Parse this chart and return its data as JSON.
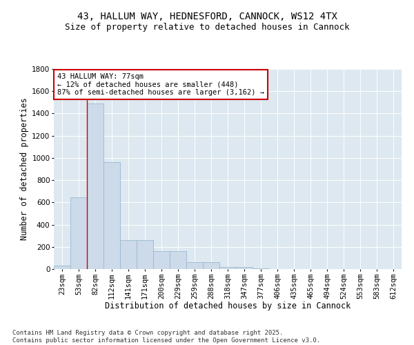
{
  "title_line1": "43, HALLUM WAY, HEDNESFORD, CANNOCK, WS12 4TX",
  "title_line2": "Size of property relative to detached houses in Cannock",
  "xlabel": "Distribution of detached houses by size in Cannock",
  "ylabel": "Number of detached properties",
  "categories": [
    "23sqm",
    "53sqm",
    "82sqm",
    "112sqm",
    "141sqm",
    "171sqm",
    "200sqm",
    "229sqm",
    "259sqm",
    "288sqm",
    "318sqm",
    "347sqm",
    "377sqm",
    "406sqm",
    "435sqm",
    "465sqm",
    "494sqm",
    "524sqm",
    "553sqm",
    "583sqm",
    "612sqm"
  ],
  "values": [
    30,
    648,
    1490,
    960,
    260,
    260,
    160,
    160,
    65,
    65,
    20,
    20,
    5,
    0,
    0,
    0,
    0,
    0,
    0,
    0,
    0
  ],
  "bar_color": "#ccdaea",
  "bar_edge_color": "#9ab8d0",
  "vline_color": "#cc0000",
  "annotation_text": "43 HALLUM WAY: 77sqm\n← 12% of detached houses are smaller (448)\n87% of semi-detached houses are larger (3,162) →",
  "annotation_box_color": "#ffffff",
  "annotation_box_edge": "#cc0000",
  "ylim": [
    0,
    1800
  ],
  "yticks": [
    0,
    200,
    400,
    600,
    800,
    1000,
    1200,
    1400,
    1600,
    1800
  ],
  "bg_color": "#dde8f0",
  "footer_line1": "Contains HM Land Registry data © Crown copyright and database right 2025.",
  "footer_line2": "Contains public sector information licensed under the Open Government Licence v3.0.",
  "title_fontsize": 10,
  "subtitle_fontsize": 9,
  "axis_label_fontsize": 8.5,
  "tick_fontsize": 7.5,
  "annotation_fontsize": 7.5,
  "footer_fontsize": 6.5
}
